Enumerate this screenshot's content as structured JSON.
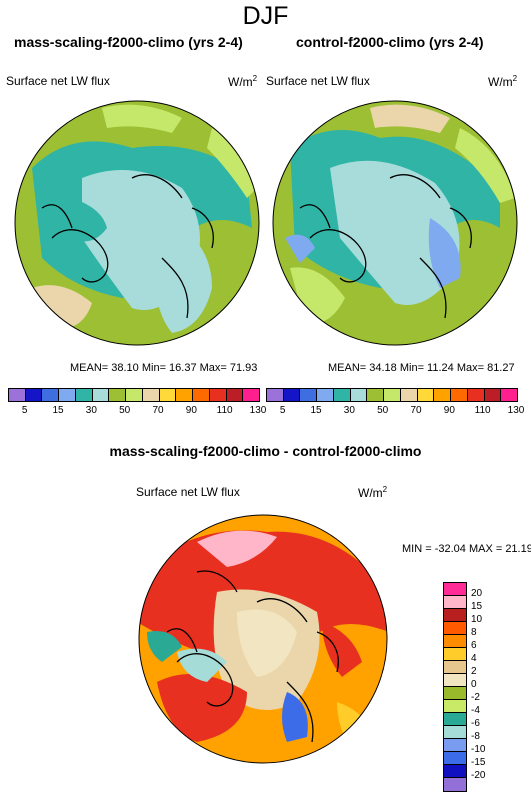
{
  "main_title": "DJF",
  "variable": "Surface net LW flux",
  "units": "W/m",
  "units_exp": "2",
  "panels": [
    {
      "title": "mass-scaling-f2000-climo (yrs 2-4)",
      "stats": "MEAN=  38.10  Min=  16.37  Max=  71.93"
    },
    {
      "title": "control-f2000-climo (yrs 2-4)",
      "stats": "MEAN=  34.18  Min=  11.24  Max=  81.27"
    }
  ],
  "diff": {
    "title": "mass-scaling-f2000-climo - control-f2000-climo",
    "stats": "MIN = -32.04 MAX =  21.19"
  },
  "colorbar_top": {
    "ticks": [
      "5",
      "15",
      "30",
      "50",
      "70",
      "90",
      "110",
      "130"
    ],
    "colors": [
      "#9b72d9",
      "#1515c8",
      "#3f6ee0",
      "#7faaf0",
      "#2fb4a6",
      "#a7dcdb",
      "#9cbf34",
      "#c6e86a",
      "#ead6aa",
      "#ffd83a",
      "#ffa200",
      "#ff6a00",
      "#e83020",
      "#bb1e26",
      "#ff1f8e"
    ]
  },
  "colorbar_diff": {
    "ticks": [
      "20",
      "15",
      "10",
      "8",
      "6",
      "4",
      "2",
      "0",
      "-2",
      "-4",
      "-6",
      "-8",
      "-10",
      "-15",
      "-20"
    ],
    "colors": [
      "#ff2b96",
      "#ffb6c8",
      "#b82020",
      "#ff5a00",
      "#ff8c00",
      "#ffcc2a",
      "#e7c78d",
      "#f2e6c2",
      "#99bb2b",
      "#c8ea66",
      "#2aaa94",
      "#a6dcd8",
      "#7a9cf0",
      "#3d6ce8",
      "#1010c0",
      "#9370d8"
    ]
  }
}
